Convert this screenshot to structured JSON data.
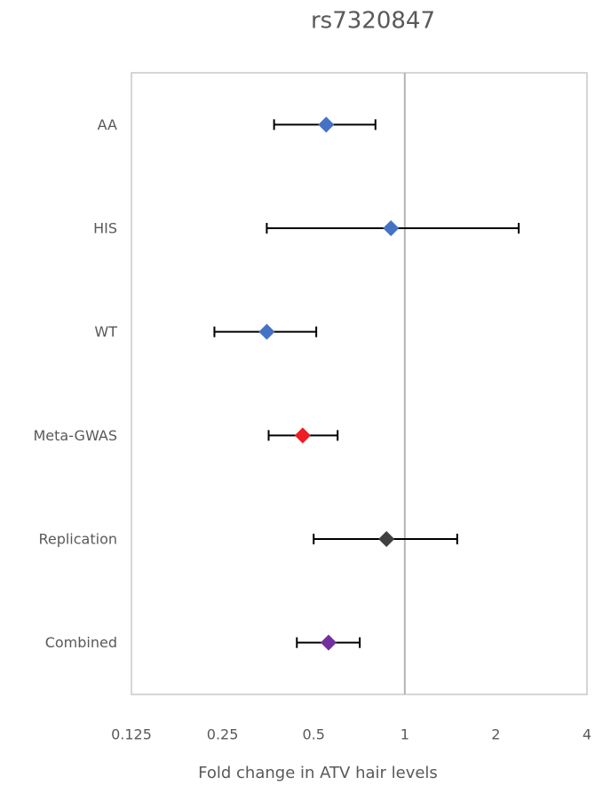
{
  "chart_data": {
    "type": "forest",
    "title": "rs7320847",
    "x_label": "Fold change in ATV hair levels",
    "categories": [
      "AA",
      "HIS",
      "WT",
      "Meta-GWAS",
      "Replication",
      "Combined"
    ],
    "values": [
      0.55,
      0.9,
      0.35,
      0.46,
      0.87,
      0.56
    ],
    "lower": [
      0.37,
      0.35,
      0.235,
      0.355,
      0.5,
      0.44
    ],
    "upper": [
      0.8,
      2.38,
      0.51,
      0.6,
      1.49,
      0.71
    ],
    "colors": [
      "#4472c4",
      "#4472c4",
      "#4472c4",
      "#ee1c25",
      "#404040",
      "#7030a0"
    ],
    "xlim": [
      0.125,
      4
    ],
    "xticks": [
      0.125,
      0.25,
      0.5,
      1,
      2,
      4
    ],
    "log_x": true,
    "reference_line": 1
  }
}
